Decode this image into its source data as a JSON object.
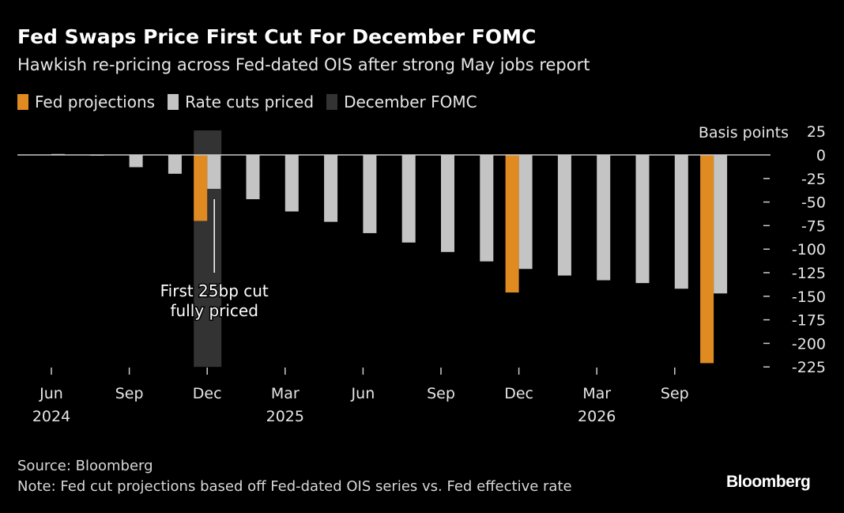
{
  "header": {
    "title": "Fed Swaps Price First Cut For December FOMC",
    "subtitle": "Hawkish re-pricing across Fed-dated OIS after strong May jobs report"
  },
  "legend": [
    {
      "label": "Fed projections",
      "color": "#e08a22"
    },
    {
      "label": "Rate cuts priced",
      "color": "#c4c4c4"
    },
    {
      "label": "December FOMC",
      "color": "#333333"
    }
  ],
  "footer": {
    "source": "Source: Bloomberg",
    "note": "Note: Fed cut projections based off Fed-dated OIS series vs. Fed effective rate",
    "logo": "Bloomberg"
  },
  "chart_data": {
    "type": "bar",
    "ylabel": "Basis points",
    "ylim": [
      -225,
      25
    ],
    "yticks": [
      25,
      0,
      -25,
      -50,
      -75,
      -100,
      -125,
      -150,
      -175,
      -200,
      -225
    ],
    "grid": false,
    "legend_placement": "top-left",
    "series": [
      {
        "name": "Rate cuts priced",
        "color": "#c4c4c4",
        "values": [
          1,
          0,
          -13,
          -20,
          -36,
          -47,
          -60,
          -71,
          -83,
          -93,
          -103,
          -113,
          -121,
          -128,
          -133,
          -136,
          -142,
          -147
        ]
      },
      {
        "name": "Fed projections",
        "color": "#e08a22",
        "values": [
          null,
          null,
          null,
          null,
          -70,
          null,
          null,
          null,
          null,
          null,
          null,
          null,
          -146,
          null,
          null,
          null,
          null,
          -221
        ]
      }
    ],
    "x_tick_labels": [
      {
        "index": 0,
        "label": "Jun",
        "year": "2024"
      },
      {
        "index": 2,
        "label": "Sep",
        "year": ""
      },
      {
        "index": 4,
        "label": "Dec",
        "year": ""
      },
      {
        "index": 6,
        "label": "Mar",
        "year": "2025"
      },
      {
        "index": 8,
        "label": "Jun",
        "year": ""
      },
      {
        "index": 10,
        "label": "Sep",
        "year": ""
      },
      {
        "index": 12,
        "label": "Dec",
        "year": ""
      },
      {
        "index": 14,
        "label": "Mar",
        "year": "2026"
      },
      {
        "index": 16,
        "label": "Sep",
        "year": ""
      }
    ],
    "highlight_index": 4,
    "annotation": {
      "index": 4,
      "lines": [
        "First 25bp cut",
        "fully priced"
      ]
    }
  }
}
